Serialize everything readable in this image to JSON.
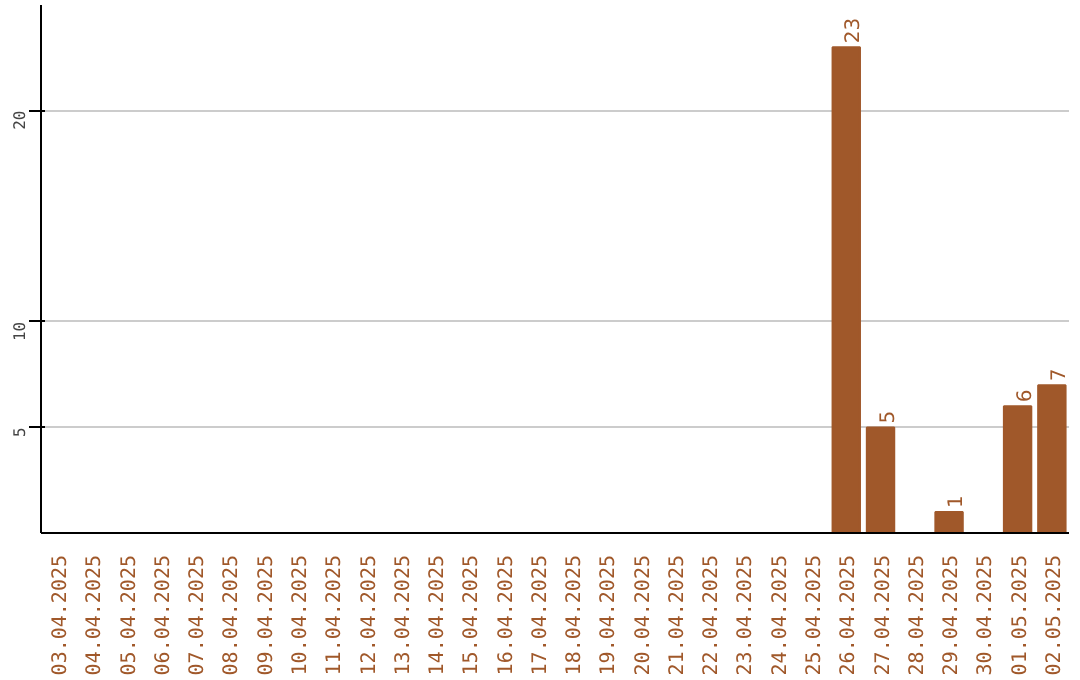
{
  "chart_data": {
    "type": "bar",
    "categories": [
      "03.04.2025",
      "04.04.2025",
      "05.04.2025",
      "06.04.2025",
      "07.04.2025",
      "08.04.2025",
      "09.04.2025",
      "10.04.2025",
      "11.04.2025",
      "12.04.2025",
      "13.04.2025",
      "14.04.2025",
      "15.04.2025",
      "16.04.2025",
      "17.04.2025",
      "18.04.2025",
      "19.04.2025",
      "20.04.2025",
      "21.04.2025",
      "22.04.2025",
      "23.04.2025",
      "24.04.2025",
      "25.04.2025",
      "26.04.2025",
      "27.04.2025",
      "28.04.2025",
      "29.04.2025",
      "30.04.2025",
      "01.05.2025",
      "02.05.2025"
    ],
    "values": [
      0,
      0,
      0,
      0,
      0,
      0,
      0,
      0,
      0,
      0,
      0,
      0,
      0,
      0,
      0,
      0,
      0,
      0,
      0,
      0,
      0,
      0,
      0,
      23,
      5,
      0,
      1,
      0,
      6,
      7
    ],
    "value_labels": [
      null,
      null,
      null,
      null,
      null,
      null,
      null,
      null,
      null,
      null,
      null,
      null,
      null,
      null,
      null,
      null,
      null,
      null,
      null,
      null,
      null,
      null,
      null,
      "23",
      "5",
      null,
      "1",
      null,
      "6",
      "7"
    ],
    "color": "#a0582a",
    "ylim": [
      0,
      25
    ],
    "yticks": [
      5,
      10,
      20
    ],
    "grid": "y"
  }
}
